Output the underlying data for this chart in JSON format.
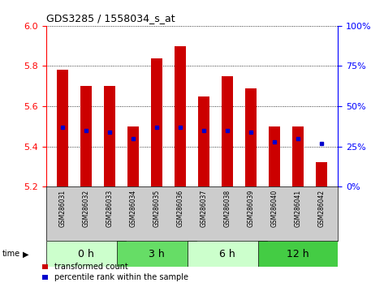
{
  "title": "GDS3285 / 1558034_s_at",
  "samples": [
    "GSM286031",
    "GSM286032",
    "GSM286033",
    "GSM286034",
    "GSM286035",
    "GSM286036",
    "GSM286037",
    "GSM286038",
    "GSM286039",
    "GSM286040",
    "GSM286041",
    "GSM286042"
  ],
  "bar_values": [
    5.78,
    5.7,
    5.7,
    5.5,
    5.84,
    5.9,
    5.65,
    5.75,
    5.69,
    5.5,
    5.5,
    5.32
  ],
  "percentile_values": [
    37,
    35,
    34,
    30,
    37,
    37,
    35,
    35,
    34,
    28,
    30,
    27
  ],
  "bar_bottom": 5.2,
  "ylim": [
    5.2,
    6.0
  ],
  "y2lim": [
    0,
    100
  ],
  "yticks": [
    5.2,
    5.4,
    5.6,
    5.8,
    6.0
  ],
  "y2ticks": [
    0,
    25,
    50,
    75,
    100
  ],
  "bar_color": "#cc0000",
  "percentile_color": "#0000cc",
  "groups": [
    {
      "label": "0 h",
      "start": 0,
      "end": 3,
      "color": "#ccffcc"
    },
    {
      "label": "3 h",
      "start": 3,
      "end": 6,
      "color": "#66dd66"
    },
    {
      "label": "6 h",
      "start": 6,
      "end": 9,
      "color": "#ccffcc"
    },
    {
      "label": "12 h",
      "start": 9,
      "end": 12,
      "color": "#44cc44"
    }
  ],
  "sample_panel_color": "#cccccc",
  "bar_width": 0.5,
  "grid_color": "#000000",
  "legend_red_label": "transformed count",
  "legend_blue_label": "percentile rank within the sample"
}
